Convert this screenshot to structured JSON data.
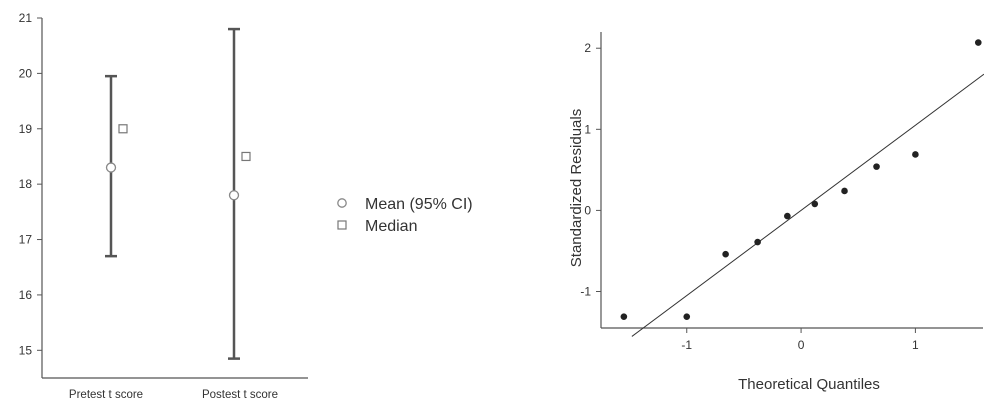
{
  "chart_data": [
    {
      "type": "errorbar",
      "categories": [
        "Pretest t score",
        "Postest t score"
      ],
      "series": [
        {
          "name": "Mean (95% CI)",
          "values": [
            18.3,
            17.8
          ],
          "ci_low": [
            16.7,
            14.85
          ],
          "ci_high": [
            19.95,
            20.8
          ]
        },
        {
          "name": "Median",
          "values": [
            19.0,
            18.5
          ]
        }
      ],
      "ylim": [
        14.5,
        21.0
      ],
      "yticks": [
        15,
        16,
        17,
        18,
        19,
        20,
        21
      ],
      "xlabel": "",
      "ylabel": "",
      "legend_position": "right"
    },
    {
      "type": "scatter",
      "xlabel": "Theoretical Quantiles",
      "ylabel": "Standardized Residuals",
      "xlim": [
        -1.75,
        1.6
      ],
      "ylim": [
        -1.45,
        2.2
      ],
      "xticks": [
        -1,
        0,
        1
      ],
      "yticks": [
        -1,
        0,
        1,
        2
      ],
      "points": [
        {
          "x": -1.55,
          "y": -1.31
        },
        {
          "x": -1.0,
          "y": -1.31
        },
        {
          "x": -0.66,
          "y": -0.54
        },
        {
          "x": -0.38,
          "y": -0.39
        },
        {
          "x": -0.12,
          "y": -0.07
        },
        {
          "x": 0.12,
          "y": 0.08
        },
        {
          "x": 0.38,
          "y": 0.24
        },
        {
          "x": 0.66,
          "y": 0.54
        },
        {
          "x": 1.0,
          "y": 0.69
        },
        {
          "x": 1.55,
          "y": 2.07
        }
      ],
      "reference_line": {
        "intercept": 0.0,
        "slope": 1.05
      }
    }
  ]
}
